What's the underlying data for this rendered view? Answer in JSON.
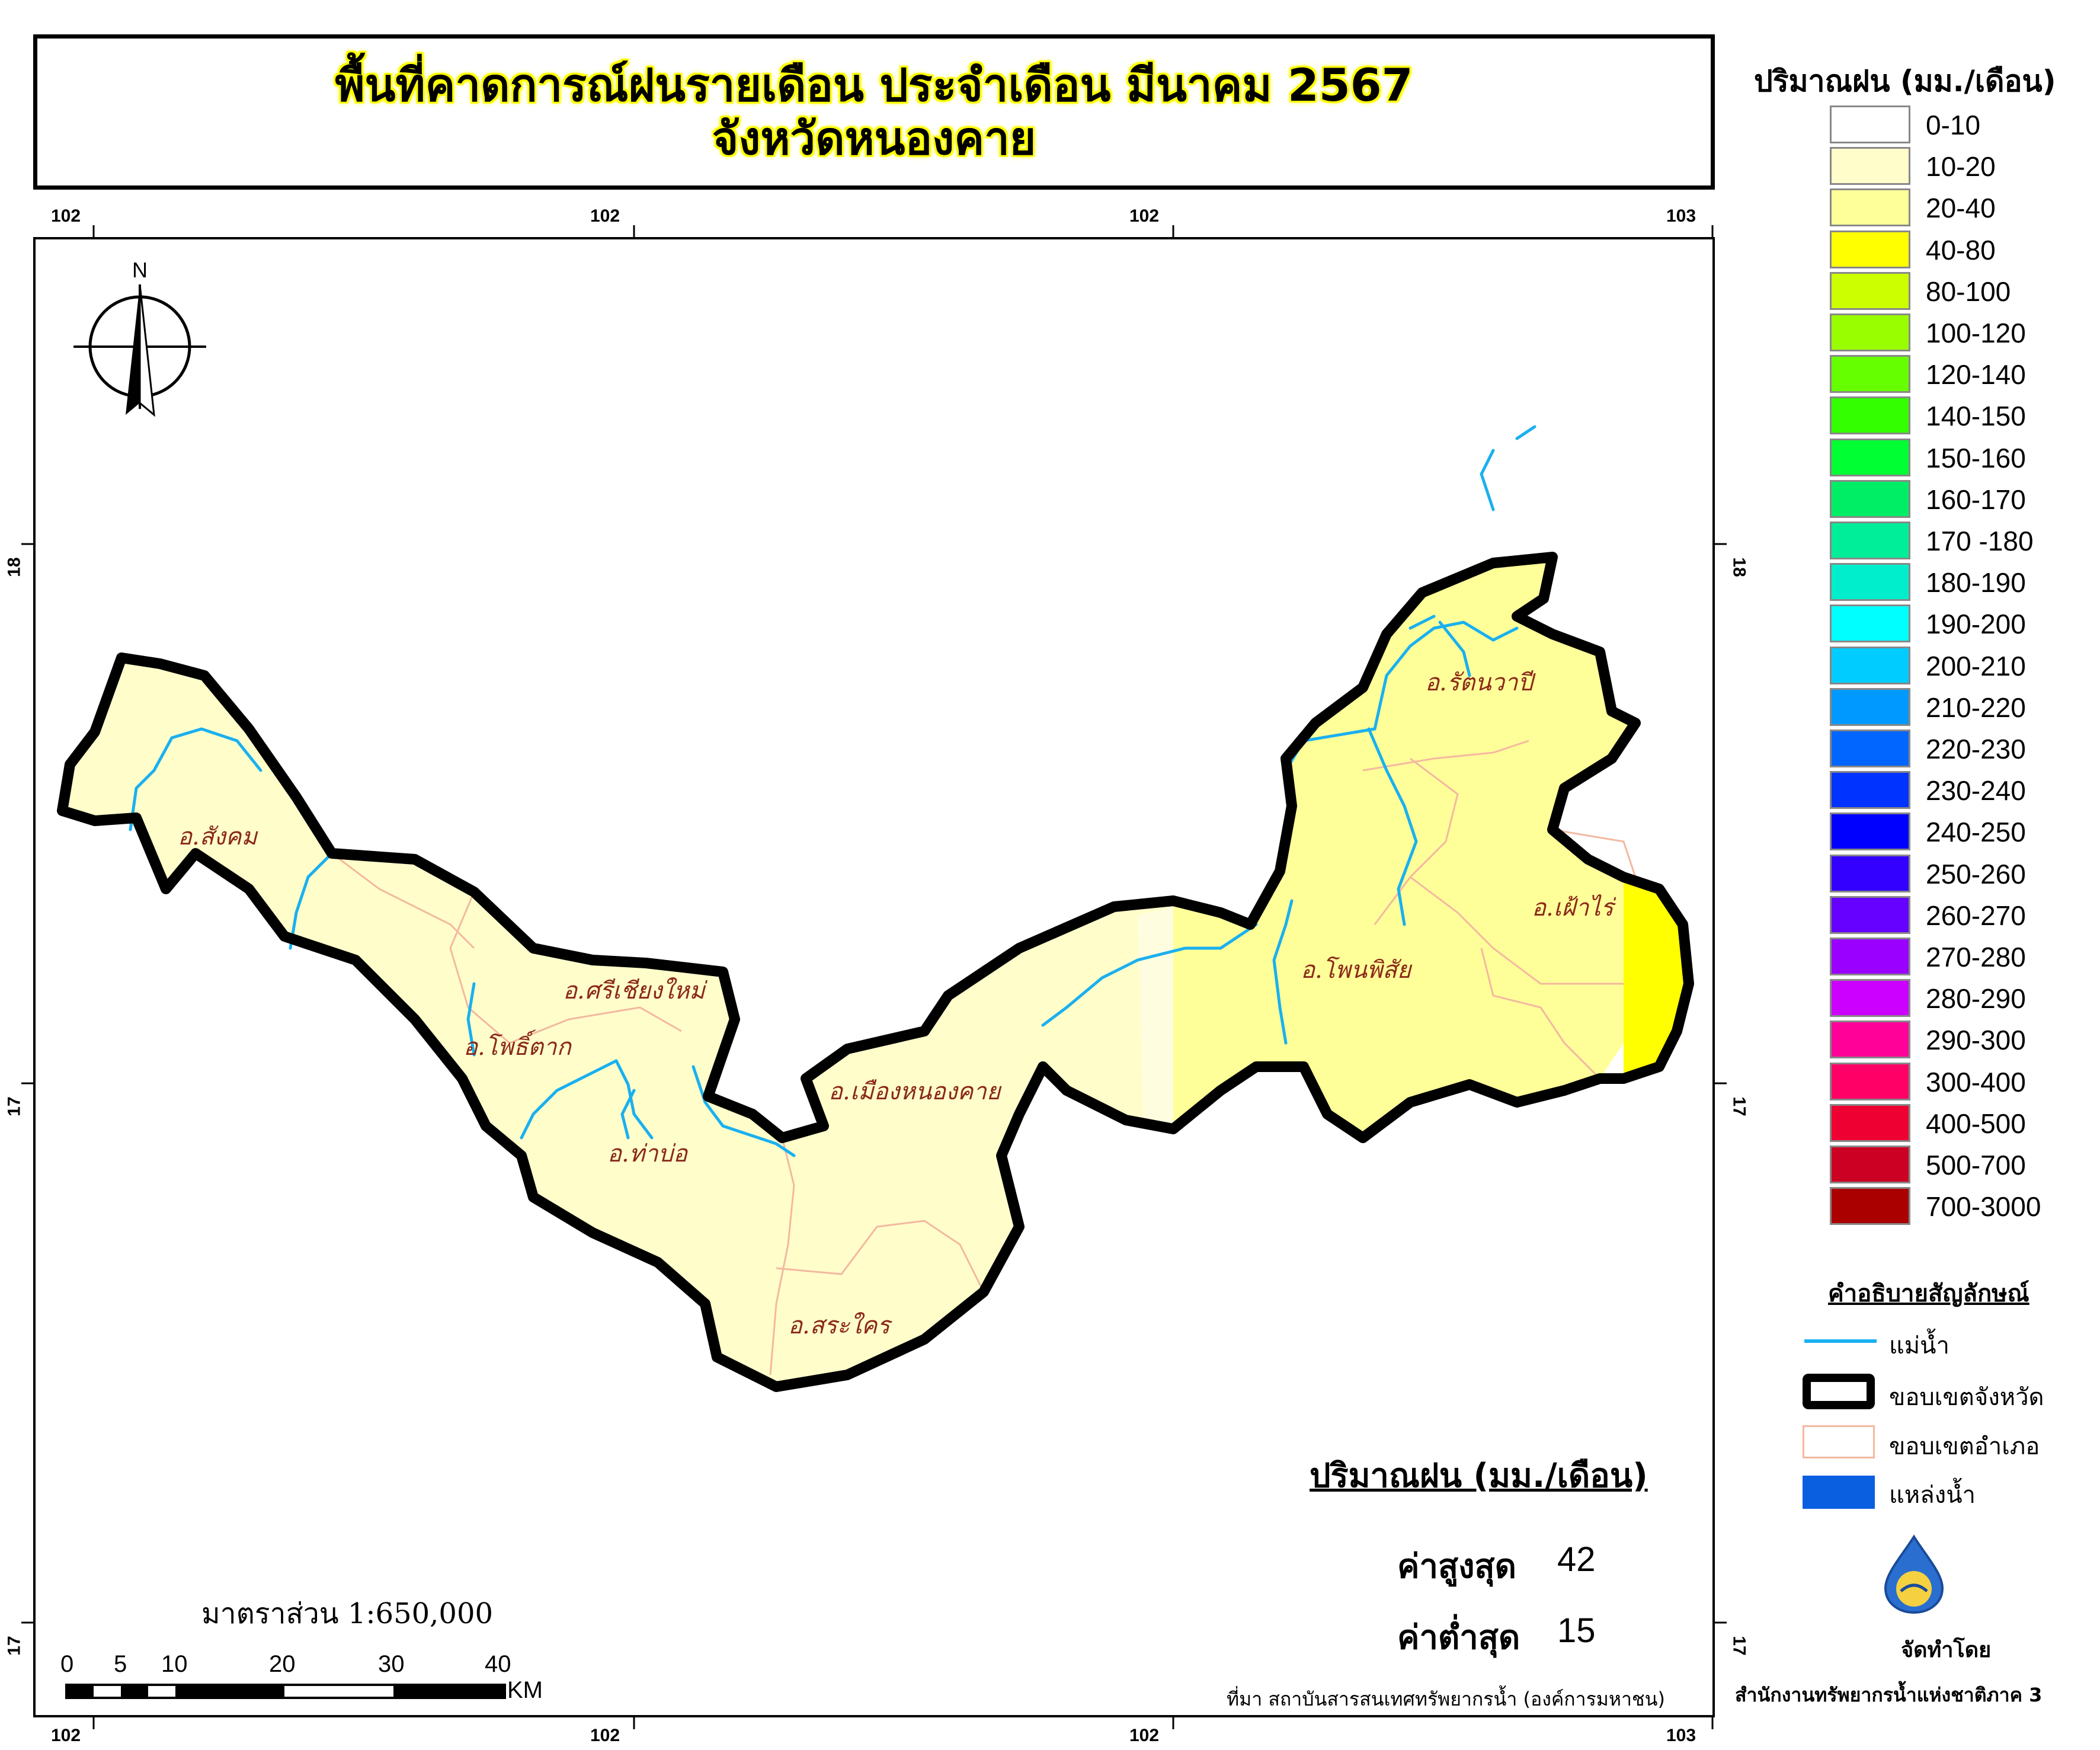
{
  "title": {
    "line1": "พื้นที่คาดการณ์ฝนรายเดือน ประจำเดือน มีนาคม 2567",
    "line2": "จังหวัดหนองคาย"
  },
  "grid_labels": {
    "top": [
      "102",
      "102",
      "102",
      "103"
    ],
    "bottom": [
      "102",
      "102",
      "102",
      "103"
    ],
    "left": [
      "18",
      "17",
      "17"
    ],
    "right": [
      "18",
      "17",
      "17"
    ]
  },
  "north_arrow": {
    "label": "N"
  },
  "amphoe_labels": [
    "อ.สังคม",
    "อ.ศรีเชียงใหม่",
    "อ.โพธิ์ตาก",
    "อ.ท่าบ่อ",
    "อ.เมืองหนองคาย",
    "อ.สระใคร",
    "อ.โพนพิสัย",
    "อ.รัตนวาปี",
    "อ.เฝ้าไร่"
  ],
  "legend": {
    "title": "ปริมาณฝน (มม./เดือน)",
    "classes": [
      {
        "label": "0-10",
        "color": "#ffffff"
      },
      {
        "label": "10-20",
        "color": "#fffecb"
      },
      {
        "label": "20-40",
        "color": "#ffff99"
      },
      {
        "label": "40-80",
        "color": "#ffff00"
      },
      {
        "label": "80-100",
        "color": "#ccff00"
      },
      {
        "label": "100-120",
        "color": "#99ff00"
      },
      {
        "label": "120-140",
        "color": "#66ff00"
      },
      {
        "label": "140-150",
        "color": "#33ff00"
      },
      {
        "label": "150-160",
        "color": "#00ff33"
      },
      {
        "label": "160-170",
        "color": "#00ee66"
      },
      {
        "label": "170 -180",
        "color": "#00ee99"
      },
      {
        "label": "180-190",
        "color": "#00eecc"
      },
      {
        "label": "190-200",
        "color": "#00ffff"
      },
      {
        "label": "200-210",
        "color": "#00ccff"
      },
      {
        "label": "210-220",
        "color": "#0099ff"
      },
      {
        "label": "220-230",
        "color": "#0066ff"
      },
      {
        "label": "230-240",
        "color": "#0033ff"
      },
      {
        "label": "240-250",
        "color": "#0000ff"
      },
      {
        "label": "250-260",
        "color": "#3300ff"
      },
      {
        "label": "260-270",
        "color": "#6600ff"
      },
      {
        "label": "270-280",
        "color": "#9900ff"
      },
      {
        "label": "280-290",
        "color": "#cc00ff"
      },
      {
        "label": "290-300",
        "color": "#ff0099"
      },
      {
        "label": "300-400",
        "color": "#ff0066"
      },
      {
        "label": "400-500",
        "color": "#ee0033"
      },
      {
        "label": "500-700",
        "color": "#cc0022"
      },
      {
        "label": "700-3000",
        "color": "#aa0000"
      }
    ]
  },
  "symbology": {
    "title": "คำอธิบายสัญลักษณ์",
    "items": [
      {
        "label": "แม่น้ำ",
        "color": "#1ab0f0"
      },
      {
        "label": "ขอบเขตจังหวัด",
        "color": "#000000"
      },
      {
        "label": "ขอบเขตอำเภอ",
        "color": "#f4b8a0"
      },
      {
        "label": "แหล่งน้ำ",
        "color": "#0a5fe0"
      }
    ]
  },
  "stats": {
    "heading": "ปริมาณฝน (มม./เดือน)",
    "max_label": "ค่าสูงสุด",
    "max_value": "42",
    "min_label": "ค่าต่ำสุด",
    "min_value": "15"
  },
  "scale": {
    "text": "มาตราส่วน 1:650,000",
    "ticks": [
      "0",
      "5",
      "10",
      "20",
      "30",
      "40"
    ],
    "unit": "KM"
  },
  "source": "ที่มา  สถาบันสารสนเทศทรัพยากรน้ำ (องค์การมหาชน)",
  "credit": {
    "label": "จัดทำโดย",
    "org": "สำนักงานทรัพยากรน้ำแห่งชาติภาค 3"
  },
  "fill_colors": {
    "province_light": "#fffecb",
    "province_mid": "#ffff99",
    "province_high": "#ffff00",
    "river": "#1ab0f0",
    "district_border": "#f4b8a0"
  }
}
